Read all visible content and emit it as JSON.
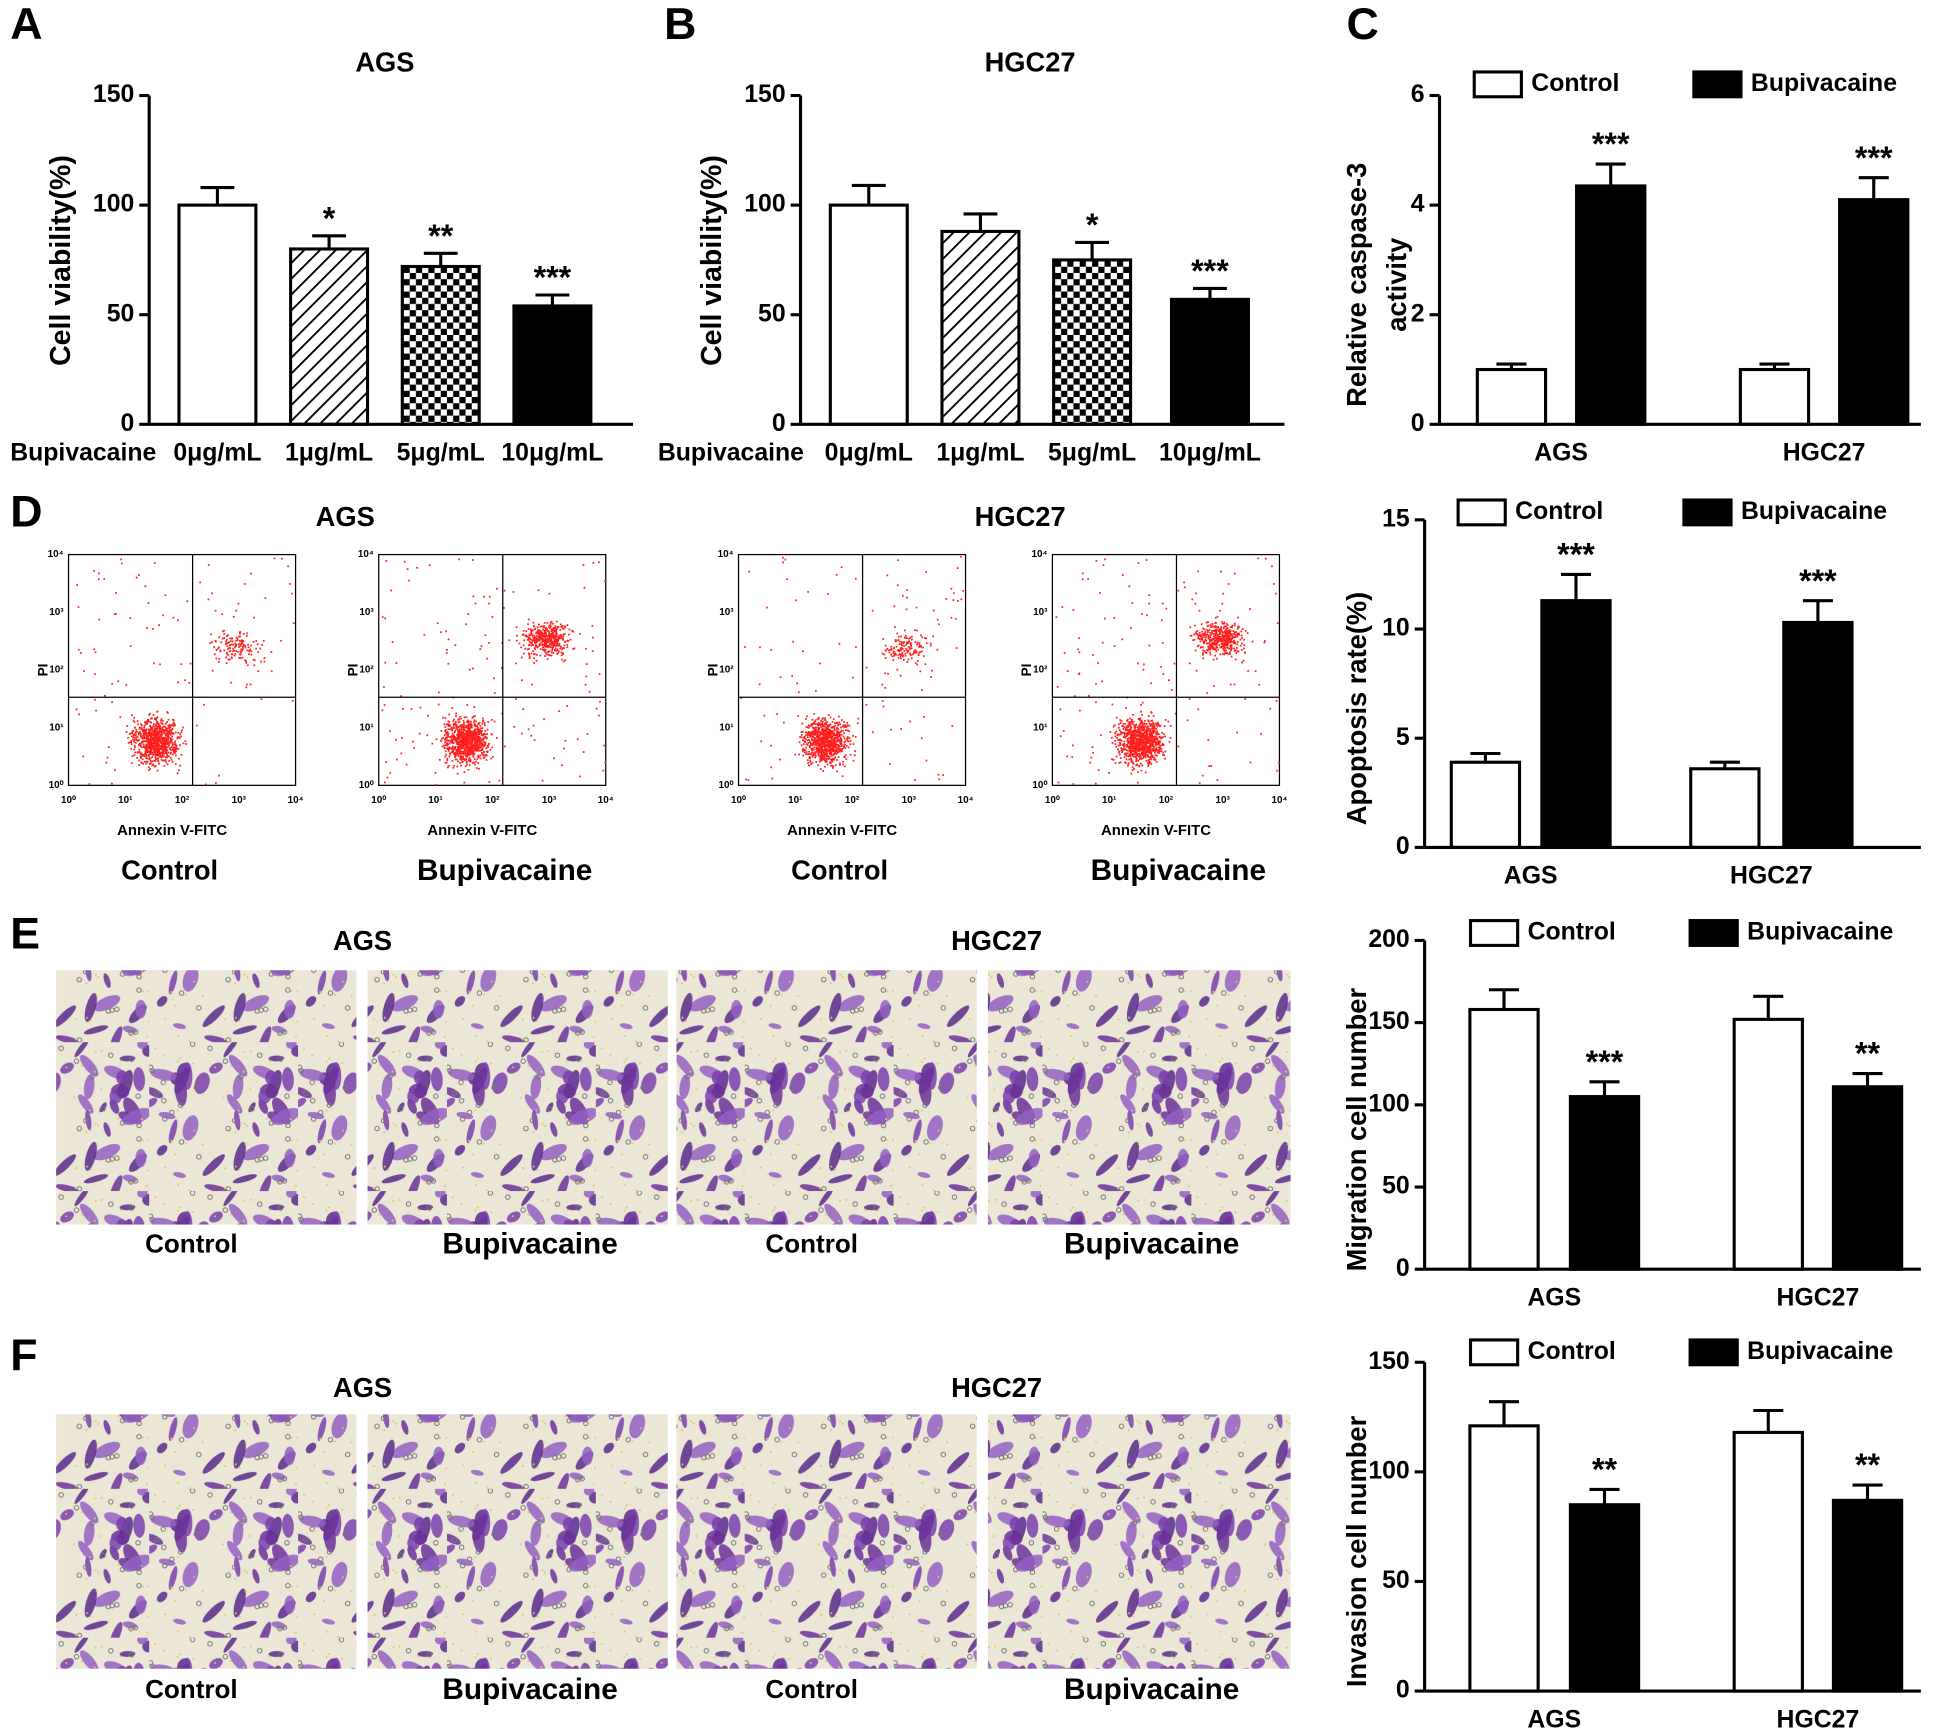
{
  "panels": [
    "A",
    "B",
    "C",
    "D",
    "E",
    "F"
  ],
  "flow": {
    "cell_lines": [
      "AGS",
      "HGC27"
    ],
    "groups": [
      "Control",
      "Bupivacaine"
    ],
    "x_label": "Annexin V-FITC",
    "y_label": "PI",
    "ticks": [
      "10⁰",
      "10¹",
      "10²",
      "10³",
      "10⁴"
    ]
  },
  "migration": {
    "cell_lines": [
      "AGS",
      "HGC27"
    ],
    "groups": [
      "Control",
      "Bupivacaine"
    ]
  },
  "invasion": {
    "cell_lines": [
      "AGS",
      "HGC27"
    ],
    "groups": [
      "Control",
      "Bupivacaine"
    ]
  },
  "chart_data": [
    {
      "type": "bar",
      "title": "AGS",
      "y_label": "Cell viability(%)",
      "x_label": "Bupivacaine",
      "categories": [
        "0μg/mL",
        "1μg/mL",
        "5μg/mL",
        "10μg/mL"
      ],
      "values": [
        100,
        80,
        72,
        54
      ],
      "errors": [
        8,
        6,
        6,
        5
      ],
      "annotations": [
        null,
        "*",
        "**",
        "***"
      ],
      "patterns": [
        "none",
        "hatch",
        "checker",
        "solid"
      ],
      "ylim": [
        0,
        150
      ],
      "yticks": [
        0,
        50,
        100,
        150
      ]
    },
    {
      "type": "bar",
      "title": "HGC27",
      "y_label": "Cell viability(%)",
      "x_label": "Bupivacaine",
      "categories": [
        "0μg/mL",
        "1μg/mL",
        "5μg/mL",
        "10μg/mL"
      ],
      "values": [
        100,
        88,
        75,
        57
      ],
      "errors": [
        9,
        8,
        8,
        5
      ],
      "annotations": [
        null,
        null,
        "*",
        "***"
      ],
      "patterns": [
        "none",
        "hatch",
        "checker",
        "solid"
      ],
      "ylim": [
        0,
        150
      ],
      "yticks": [
        0,
        50,
        100,
        150
      ]
    },
    {
      "type": "grouped_bar",
      "y_label": [
        "Relative caspase-3",
        "activity"
      ],
      "categories": [
        "AGS",
        "HGC27"
      ],
      "series": [
        {
          "name": "Control",
          "color": "#ffffff",
          "values": [
            1.0,
            1.0
          ],
          "errors": [
            0.1,
            0.1
          ],
          "annotations": [
            null,
            null
          ]
        },
        {
          "name": "Bupivacaine",
          "color": "#000000",
          "values": [
            4.35,
            4.1
          ],
          "errors": [
            0.4,
            0.4
          ],
          "annotations": [
            "***",
            "***"
          ]
        }
      ],
      "ylim": [
        0,
        6
      ],
      "yticks": [
        0,
        2,
        4,
        6
      ]
    },
    {
      "type": "grouped_bar",
      "y_label": [
        "Apoptosis rate(%)"
      ],
      "categories": [
        "AGS",
        "HGC27"
      ],
      "series": [
        {
          "name": "Control",
          "color": "#ffffff",
          "values": [
            3.9,
            3.6
          ],
          "errors": [
            0.4,
            0.3
          ],
          "annotations": [
            null,
            null
          ]
        },
        {
          "name": "Bupivacaine",
          "color": "#000000",
          "values": [
            11.3,
            10.3
          ],
          "errors": [
            1.2,
            1.0
          ],
          "annotations": [
            "***",
            "***"
          ]
        }
      ],
      "ylim": [
        0,
        15
      ],
      "yticks": [
        0,
        5,
        10,
        15
      ]
    },
    {
      "type": "grouped_bar",
      "y_label": [
        "Migration cell number"
      ],
      "categories": [
        "AGS",
        "HGC27"
      ],
      "series": [
        {
          "name": "Control",
          "color": "#ffffff",
          "values": [
            158,
            152
          ],
          "errors": [
            12,
            14
          ],
          "annotations": [
            null,
            null
          ]
        },
        {
          "name": "Bupivacaine",
          "color": "#000000",
          "values": [
            105,
            111
          ],
          "errors": [
            9,
            8
          ],
          "annotations": [
            "***",
            "**"
          ]
        }
      ],
      "ylim": [
        0,
        200
      ],
      "yticks": [
        0,
        50,
        100,
        150,
        200
      ]
    },
    {
      "type": "grouped_bar",
      "y_label": [
        "Invasion cell number"
      ],
      "categories": [
        "AGS",
        "HGC27"
      ],
      "series": [
        {
          "name": "Control",
          "color": "#ffffff",
          "values": [
            121,
            118
          ],
          "errors": [
            11,
            10
          ],
          "annotations": [
            null,
            null
          ]
        },
        {
          "name": "Bupivacaine",
          "color": "#000000",
          "values": [
            85,
            87
          ],
          "errors": [
            7,
            7
          ],
          "annotations": [
            "**",
            "**"
          ]
        }
      ],
      "ylim": [
        0,
        150
      ],
      "yticks": [
        0,
        50,
        100,
        150
      ]
    }
  ]
}
